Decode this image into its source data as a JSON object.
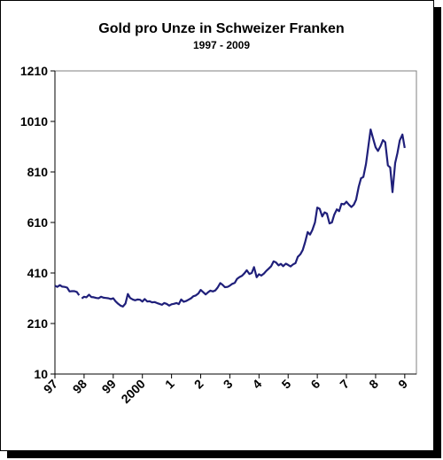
{
  "chart_data": {
    "type": "line",
    "title": "Gold pro Unze in Schweizer Franken",
    "subtitle": "1997 - 2009",
    "xlabel": "",
    "ylabel": "",
    "ylim": [
      10,
      1210
    ],
    "yticks": [
      10,
      210,
      410,
      610,
      810,
      1010,
      1210
    ],
    "xlim": [
      1997,
      2009.4
    ],
    "xticks": [
      {
        "x": 1997,
        "label": "97"
      },
      {
        "x": 1998,
        "label": "98"
      },
      {
        "x": 1999,
        "label": "99"
      },
      {
        "x": 2000,
        "label": "2000"
      },
      {
        "x": 2001,
        "label": "1"
      },
      {
        "x": 2002,
        "label": "2"
      },
      {
        "x": 2003,
        "label": "3"
      },
      {
        "x": 2004,
        "label": "4"
      },
      {
        "x": 2005,
        "label": "5"
      },
      {
        "x": 2006,
        "label": "6"
      },
      {
        "x": 2007,
        "label": "7"
      },
      {
        "x": 2008,
        "label": "8"
      },
      {
        "x": 2009,
        "label": "9"
      }
    ],
    "grid": false,
    "line_color": "#1f1f7a",
    "series": [
      {
        "segments": [
          [
            [
              1997.0,
              360
            ],
            [
              1997.08,
              355
            ],
            [
              1997.17,
              362
            ],
            [
              1997.25,
              356
            ],
            [
              1997.33,
              355
            ],
            [
              1997.42,
              352
            ],
            [
              1997.5,
              337
            ],
            [
              1997.58,
              338
            ],
            [
              1997.67,
              338
            ],
            [
              1997.75,
              335
            ],
            [
              1997.83,
              322
            ]
          ],
          [
            [
              1997.92,
              309
            ],
            [
              1998.0,
              316
            ],
            [
              1998.08,
              314
            ],
            [
              1998.17,
              324
            ],
            [
              1998.25,
              315
            ],
            [
              1998.33,
              314
            ],
            [
              1998.42,
              311
            ],
            [
              1998.5,
              310
            ],
            [
              1998.58,
              316
            ],
            [
              1998.67,
              312
            ],
            [
              1998.75,
              311
            ],
            [
              1998.83,
              310
            ],
            [
              1998.92,
              307
            ],
            [
              1999.0,
              310
            ],
            [
              1999.08,
              298
            ],
            [
              1999.17,
              288
            ],
            [
              1999.25,
              281
            ],
            [
              1999.33,
              277
            ],
            [
              1999.42,
              289
            ],
            [
              1999.5,
              327
            ],
            [
              1999.58,
              311
            ],
            [
              1999.67,
              305
            ],
            [
              1999.75,
              302
            ],
            [
              1999.83,
              305
            ],
            [
              1999.92,
              304
            ],
            [
              2000.0,
              297
            ],
            [
              2000.08,
              307
            ],
            [
              2000.17,
              297
            ],
            [
              2000.25,
              298
            ],
            [
              2000.33,
              294
            ],
            [
              2000.42,
              295
            ],
            [
              2000.5,
              291
            ],
            [
              2000.58,
              288
            ],
            [
              2000.67,
              284
            ],
            [
              2000.75,
              291
            ],
            [
              2000.83,
              288
            ],
            [
              2000.92,
              281
            ],
            [
              2001.0,
              286
            ],
            [
              2001.08,
              288
            ],
            [
              2001.17,
              291
            ],
            [
              2001.25,
              287
            ],
            [
              2001.33,
              305
            ],
            [
              2001.42,
              296
            ],
            [
              2001.5,
              299
            ],
            [
              2001.58,
              304
            ],
            [
              2001.67,
              310
            ],
            [
              2001.75,
              318
            ],
            [
              2001.83,
              321
            ],
            [
              2001.92,
              329
            ],
            [
              2002.0,
              343
            ],
            [
              2002.08,
              335
            ],
            [
              2002.17,
              325
            ],
            [
              2002.25,
              333
            ],
            [
              2002.33,
              340
            ],
            [
              2002.42,
              337
            ],
            [
              2002.5,
              341
            ],
            [
              2002.58,
              352
            ],
            [
              2002.67,
              370
            ],
            [
              2002.75,
              363
            ],
            [
              2002.83,
              354
            ],
            [
              2002.92,
              355
            ],
            [
              2003.0,
              360
            ],
            [
              2003.08,
              367
            ],
            [
              2003.17,
              371
            ],
            [
              2003.25,
              387
            ],
            [
              2003.33,
              394
            ],
            [
              2003.42,
              399
            ],
            [
              2003.5,
              409
            ],
            [
              2003.58,
              421
            ],
            [
              2003.67,
              406
            ],
            [
              2003.75,
              410
            ],
            [
              2003.83,
              433
            ],
            [
              2003.92,
              393
            ],
            [
              2004.0,
              405
            ],
            [
              2004.08,
              400
            ],
            [
              2004.17,
              408
            ],
            [
              2004.25,
              418
            ],
            [
              2004.33,
              427
            ],
            [
              2004.42,
              437
            ],
            [
              2004.5,
              456
            ],
            [
              2004.58,
              452
            ],
            [
              2004.67,
              440
            ],
            [
              2004.75,
              446
            ],
            [
              2004.83,
              437
            ],
            [
              2004.92,
              447
            ],
            [
              2005.0,
              442
            ],
            [
              2005.08,
              436
            ],
            [
              2005.17,
              444
            ],
            [
              2005.25,
              449
            ],
            [
              2005.33,
              474
            ],
            [
              2005.42,
              484
            ],
            [
              2005.5,
              501
            ],
            [
              2005.58,
              531
            ],
            [
              2005.67,
              572
            ],
            [
              2005.75,
              562
            ],
            [
              2005.83,
              580
            ],
            [
              2005.92,
              610
            ],
            [
              2006.0,
              669
            ],
            [
              2006.08,
              664
            ],
            [
              2006.17,
              634
            ],
            [
              2006.25,
              650
            ],
            [
              2006.33,
              645
            ],
            [
              2006.42,
              606
            ],
            [
              2006.5,
              610
            ],
            [
              2006.58,
              640
            ],
            [
              2006.67,
              662
            ],
            [
              2006.75,
              655
            ],
            [
              2006.83,
              684
            ],
            [
              2006.92,
              682
            ],
            [
              2007.0,
              692
            ],
            [
              2007.08,
              681
            ],
            [
              2007.17,
              671
            ],
            [
              2007.25,
              680
            ],
            [
              2007.33,
              700
            ],
            [
              2007.42,
              752
            ],
            [
              2007.5,
              785
            ],
            [
              2007.58,
              790
            ],
            [
              2007.67,
              842
            ],
            [
              2007.75,
              910
            ],
            [
              2007.83,
              978
            ],
            [
              2007.92,
              940
            ],
            [
              2008.0,
              908
            ],
            [
              2008.08,
              893
            ],
            [
              2008.17,
              912
            ],
            [
              2008.25,
              936
            ],
            [
              2008.33,
              928
            ],
            [
              2008.42,
              836
            ],
            [
              2008.5,
              828
            ],
            [
              2008.58,
              730
            ],
            [
              2008.67,
              845
            ],
            [
              2008.75,
              885
            ],
            [
              2008.83,
              935
            ],
            [
              2008.92,
              958
            ],
            [
              2009.0,
              905
            ]
          ]
        ]
      }
    ]
  }
}
